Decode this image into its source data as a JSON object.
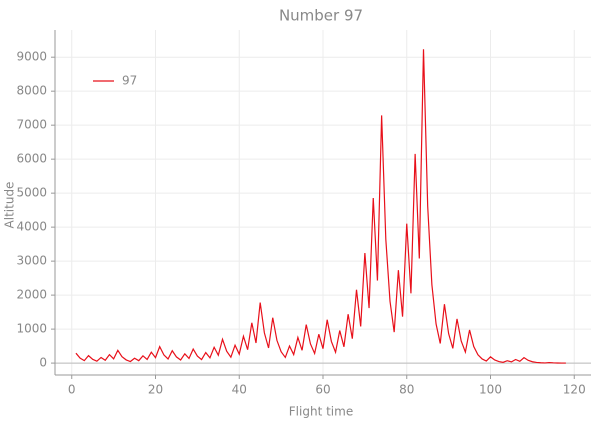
{
  "chart_data": {
    "type": "line",
    "title": "Number 97",
    "xlabel": "Flight time",
    "ylabel": "Altitude",
    "x": [
      1,
      2,
      3,
      4,
      5,
      6,
      7,
      8,
      9,
      10,
      11,
      12,
      13,
      14,
      15,
      16,
      17,
      18,
      19,
      20,
      21,
      22,
      23,
      24,
      25,
      26,
      27,
      28,
      29,
      30,
      31,
      32,
      33,
      34,
      35,
      36,
      37,
      38,
      39,
      40,
      41,
      42,
      43,
      44,
      45,
      46,
      47,
      48,
      49,
      50,
      51,
      52,
      53,
      54,
      55,
      56,
      57,
      58,
      59,
      60,
      61,
      62,
      63,
      64,
      65,
      66,
      67,
      68,
      69,
      70,
      71,
      72,
      73,
      74,
      75,
      76,
      77,
      78,
      79,
      80,
      81,
      82,
      83,
      84,
      85,
      86,
      87,
      88,
      89,
      90,
      91,
      92,
      93,
      94,
      95,
      96,
      97,
      98,
      99,
      100,
      101,
      102,
      103,
      104,
      105,
      106,
      107,
      108,
      109,
      110,
      111,
      112,
      113,
      114,
      115,
      116,
      117,
      118
    ],
    "series": [
      {
        "name": "97",
        "color": "#e8101a",
        "values": [
          292,
          146,
          73,
          220,
          110,
          55,
          166,
          83,
          250,
          125,
          376,
          188,
          94,
          47,
          142,
          71,
          214,
          107,
          322,
          161,
          484,
          242,
          121,
          364,
          182,
          91,
          274,
          137,
          412,
          206,
          103,
          310,
          155,
          466,
          233,
          700,
          350,
          175,
          526,
          263,
          790,
          395,
          1186,
          593,
          1780,
          890,
          445,
          1336,
          668,
          334,
          167,
          502,
          251,
          754,
          377,
          1132,
          566,
          283,
          850,
          425,
          1276,
          638,
          319,
          958,
          479,
          1438,
          719,
          2158,
          1079,
          3238,
          1619,
          4858,
          2429,
          7288,
          3644,
          1822,
          911,
          2734,
          1367,
          4102,
          2051,
          6154,
          3077,
          9232,
          4616,
          2308,
          1154,
          577,
          1732,
          866,
          433,
          1300,
          650,
          325,
          976,
          488,
          244,
          122,
          61,
          184,
          92,
          46,
          23,
          70,
          35,
          106,
          53,
          160,
          80,
          40,
          20,
          10,
          5,
          16,
          8,
          4,
          2,
          1
        ]
      }
    ],
    "xlim": [
      -4,
      124
    ],
    "xticks": [
      0,
      20,
      40,
      60,
      80,
      100,
      120
    ],
    "ylim": [
      -350,
      9800
    ],
    "yticks": [
      0,
      1000,
      2000,
      3000,
      4000,
      5000,
      6000,
      7000,
      8000,
      9000
    ],
    "grid": true,
    "legend": "upper left"
  }
}
